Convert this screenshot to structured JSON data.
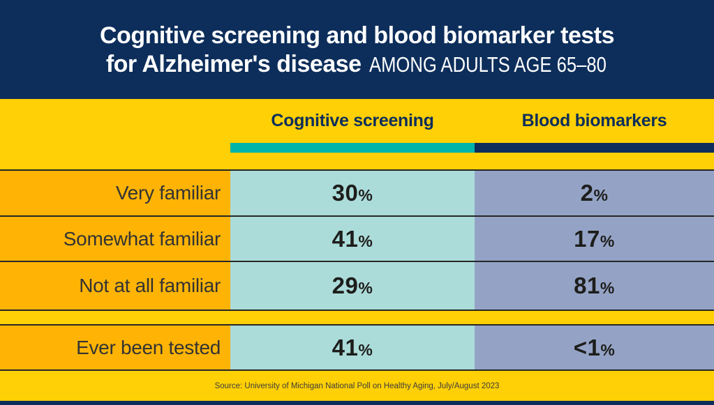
{
  "header": {
    "title_line1": "Cognitive screening and blood biomarker tests",
    "title_line2_bold": "for Alzheimer's disease",
    "title_line2_regular": "AMONG ADULTS AGE 65–80"
  },
  "table": {
    "columns": [
      {
        "label": "Cognitive screening",
        "accent_color": "#00b3a9"
      },
      {
        "label": "Blood biomarkers",
        "accent_color": "#0d2e5b"
      }
    ],
    "rows": [
      {
        "label": "Very familiar",
        "cells": [
          {
            "num": "30",
            "sym": "%"
          },
          {
            "num": "2",
            "sym": "%"
          }
        ]
      },
      {
        "label": "Somewhat familiar",
        "cells": [
          {
            "num": "41",
            "sym": "%"
          },
          {
            "num": "17",
            "sym": "%"
          }
        ]
      },
      {
        "label": "Not at all familiar",
        "cells": [
          {
            "num": "29",
            "sym": "%"
          },
          {
            "num": "81",
            "sym": "%"
          }
        ]
      }
    ],
    "tested_row": {
      "label": "Ever been tested",
      "cells": [
        {
          "num": "41",
          "sym": "%"
        },
        {
          "num": "<1",
          "sym": "%"
        }
      ]
    }
  },
  "footer": {
    "source": "Source: University of Michigan National Poll on Healthy Aging, July/August 2023"
  },
  "colors": {
    "navy": "#0d2e5b",
    "yellow": "#ffd005",
    "orange": "#ffb405",
    "teal": "#00b3a9",
    "light_teal": "#abdcd9",
    "blue_gray": "#94a3c5",
    "divider": "#262626",
    "title_text": "#ffffff"
  },
  "chart_data": {
    "type": "table",
    "title": "Cognitive screening and blood biomarker tests for Alzheimer's disease among adults age 65–80",
    "categories": [
      "Very familiar",
      "Somewhat familiar",
      "Not at all familiar",
      "Ever been tested"
    ],
    "series": [
      {
        "name": "Cognitive screening",
        "values": [
          "30%",
          "41%",
          "29%",
          "41%"
        ]
      },
      {
        "name": "Blood biomarkers",
        "values": [
          "2%",
          "17%",
          "81%",
          "<1%"
        ]
      }
    ],
    "source": "Source: University of Michigan National Poll on Healthy Aging, July/August 2023"
  }
}
